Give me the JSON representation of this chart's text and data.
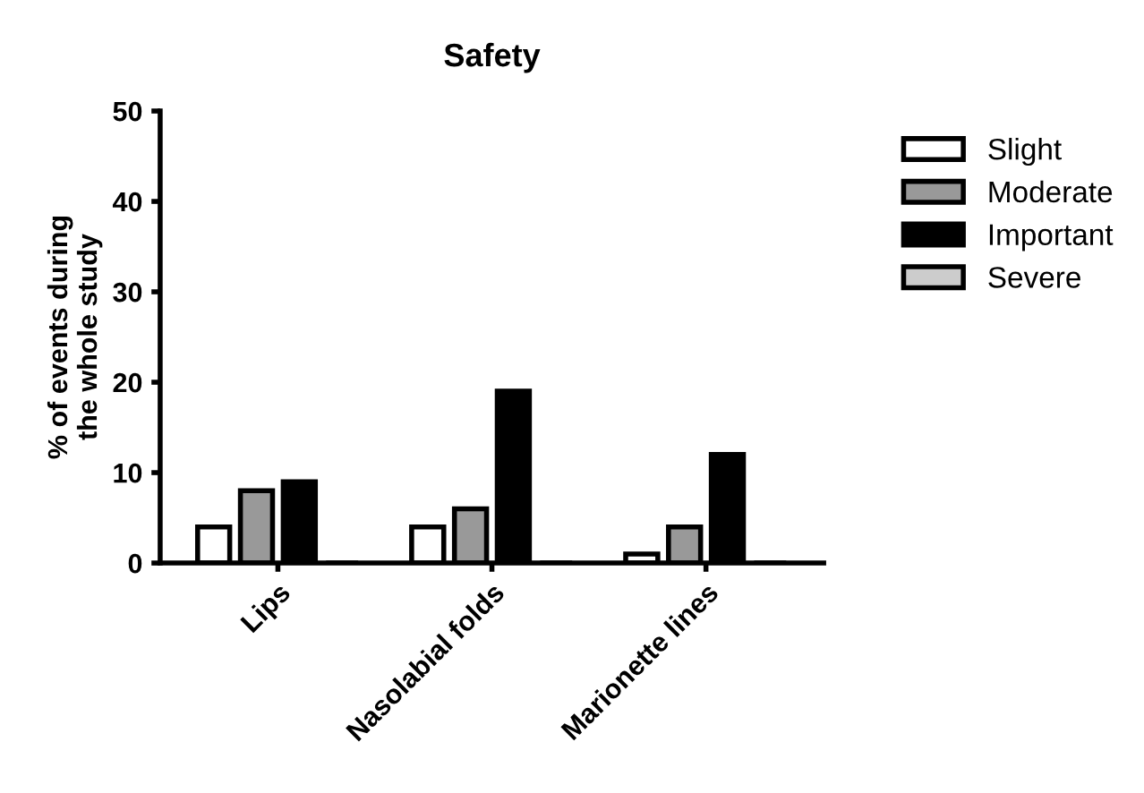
{
  "chart_data": {
    "type": "bar",
    "title": "Safety",
    "ylabel": "% of events during\nthe whole study",
    "categories": [
      "Lips",
      "Nasolabial folds",
      "Marionette lines"
    ],
    "series": [
      {
        "name": "Slight",
        "color": "#ffffff",
        "values": [
          4,
          4,
          1
        ]
      },
      {
        "name": "Moderate",
        "color": "#999999",
        "values": [
          8,
          6,
          4
        ]
      },
      {
        "name": "Important",
        "color": "#000000",
        "values": [
          9,
          19,
          12
        ]
      },
      {
        "name": "Severe",
        "color": "#cccccc",
        "values": [
          0,
          0,
          0
        ]
      }
    ],
    "ylim": [
      0,
      50
    ],
    "yticks": [
      0,
      10,
      20,
      30,
      40,
      50
    ],
    "grid": false,
    "legend": "right"
  }
}
